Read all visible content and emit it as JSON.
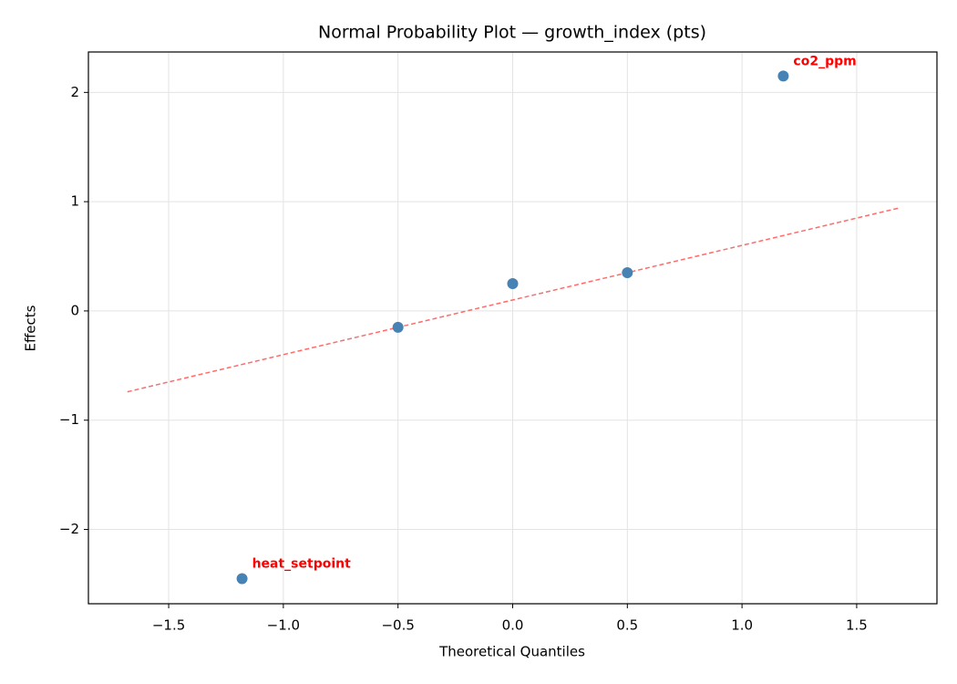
{
  "chart_data": {
    "type": "scatter",
    "title": "Normal Probability Plot — growth_index (pts)",
    "x_label": "Theoretical Quantiles",
    "y_label": "Effects",
    "x": [
      -1.18,
      -0.5,
      0,
      0.5,
      1.18
    ],
    "values": [
      -2.45,
      -0.15,
      0.25,
      0.35,
      2.15
    ],
    "color": "#4682b4",
    "point_labels": [
      "heat_setpoint",
      null,
      null,
      null,
      "co2_ppm"
    ],
    "point_label_color": "#ff0000",
    "reference_line": {
      "x": [
        -1.68,
        1.68
      ],
      "values": [
        -0.74,
        0.94
      ],
      "color": "#ff6b6b"
    },
    "xlim": [
      -1.85,
      1.85
    ],
    "ylim": [
      -2.68,
      2.37
    ],
    "xticks": [
      {
        "value": -1.5,
        "label": "−1.5"
      },
      {
        "value": -1.0,
        "label": "−1.0"
      },
      {
        "value": -0.5,
        "label": "−0.5"
      },
      {
        "value": 0,
        "label": "0.0"
      },
      0.5,
      {
        "value": 1.0,
        "label": "1.0"
      },
      1.5
    ],
    "yticks": [
      {
        "value": -2,
        "label": "−2"
      },
      {
        "value": -1,
        "label": "−1"
      },
      0,
      1,
      2
    ],
    "grid": true
  }
}
